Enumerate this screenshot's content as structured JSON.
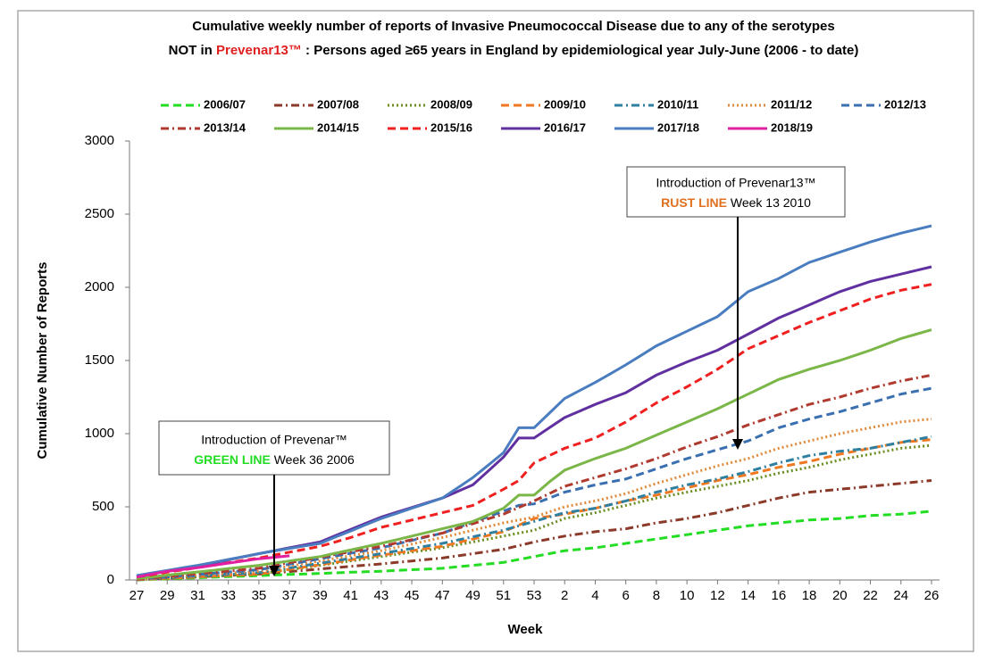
{
  "chart_data": {
    "type": "line",
    "title": {
      "line1": "Cumulative weekly number of reports of Invasive Pneumococcal Disease due to any of the serotypes",
      "line2_start": "NOT in ",
      "line2_highlight": "Prevenar13™",
      "line2_end": " : Persons aged ≥65 years in England by epidemiological year July-June (2006 - to date)",
      "highlight_color": "#e02020"
    },
    "x_label": "Week",
    "y_label": "Cumulative Number of Reports",
    "ylim": [
      0,
      3000
    ],
    "yticks": [
      0,
      500,
      1000,
      1500,
      2000,
      2500,
      3000
    ],
    "grid": false,
    "legend": "top",
    "annotations": [
      {
        "line1": "Introduction of Prevenar™",
        "highlight": "GREEN LINE",
        "rest": " Week 36 2006",
        "highlight_color": "#22dd22"
      },
      {
        "line1": "Introduction of Prevenar13™",
        "highlight": "RUST LINE",
        "rest": " Week 13 2010",
        "highlight_color": "#e07020"
      }
    ],
    "categories": [
      "27",
      null,
      "29",
      null,
      "31",
      null,
      "33",
      null,
      "35",
      null,
      "37",
      null,
      "39",
      null,
      "41",
      null,
      "43",
      null,
      "45",
      null,
      "47",
      null,
      "49",
      null,
      "51",
      null,
      "53",
      null,
      "2",
      null,
      "4",
      null,
      "6",
      null,
      "8",
      null,
      "10",
      null,
      "12",
      null,
      "14",
      null,
      "16",
      null,
      "18",
      null,
      "20",
      null,
      "22",
      null,
      "24",
      null,
      "26"
    ],
    "series": [
      {
        "name": "2006/07",
        "color": "#22dd22",
        "dash": "dashed",
        "values": [
          0,
          4,
          8,
          11,
          15,
          19,
          23,
          26,
          30,
          34,
          38,
          41,
          45,
          49,
          53,
          56,
          60,
          65,
          70,
          75,
          80,
          90,
          100,
          110,
          120,
          140,
          160,
          180,
          200,
          210,
          220,
          235,
          250,
          265,
          280,
          295,
          310,
          325,
          340,
          355,
          370,
          380,
          390,
          400,
          410,
          415,
          420,
          430,
          440,
          445,
          450,
          460,
          470
        ]
      },
      {
        "name": "2007/08",
        "color": "#8b3a2a",
        "dash": "dashdot",
        "values": [
          2,
          7,
          12,
          16,
          21,
          26,
          31,
          35,
          40,
          49,
          58,
          66,
          75,
          84,
          93,
          101,
          110,
          120,
          130,
          140,
          150,
          165,
          180,
          195,
          210,
          235,
          260,
          280,
          300,
          315,
          330,
          340,
          350,
          370,
          390,
          405,
          420,
          440,
          460,
          485,
          510,
          535,
          560,
          580,
          600,
          610,
          620,
          630,
          640,
          650,
          660,
          670,
          680
        ]
      },
      {
        "name": "2008/09",
        "color": "#6b8e23",
        "dash": "dotted",
        "values": [
          2,
          7,
          12,
          16,
          21,
          26,
          31,
          35,
          40,
          55,
          70,
          85,
          100,
          115,
          130,
          145,
          160,
          175,
          190,
          205,
          220,
          240,
          260,
          280,
          300,
          320,
          340,
          380,
          420,
          440,
          460,
          485,
          510,
          535,
          560,
          580,
          600,
          620,
          640,
          660,
          680,
          705,
          730,
          750,
          770,
          795,
          820,
          840,
          860,
          880,
          900,
          910,
          920
        ]
      },
      {
        "name": "2009/10",
        "color": "#f07820",
        "dash": "dashed",
        "values": [
          2,
          7,
          12,
          16,
          21,
          26,
          31,
          35,
          40,
          56,
          73,
          89,
          105,
          121,
          138,
          154,
          170,
          185,
          200,
          215,
          230,
          255,
          280,
          305,
          330,
          375,
          420,
          435,
          450,
          470,
          490,
          515,
          540,
          560,
          580,
          605,
          630,
          655,
          680,
          700,
          720,
          745,
          770,
          790,
          810,
          835,
          860,
          880,
          900,
          920,
          940,
          950,
          960
        ]
      },
      {
        "name": "2010/11",
        "color": "#2e7fa0",
        "dash": "dashdot",
        "values": [
          5,
          11,
          16,
          22,
          28,
          33,
          39,
          44,
          50,
          66,
          83,
          99,
          115,
          131,
          148,
          164,
          180,
          198,
          215,
          233,
          250,
          273,
          295,
          318,
          340,
          370,
          400,
          430,
          460,
          475,
          490,
          515,
          540,
          570,
          600,
          625,
          650,
          670,
          690,
          715,
          740,
          770,
          800,
          825,
          850,
          865,
          880,
          890,
          900,
          920,
          940,
          960,
          980
        ]
      },
      {
        "name": "2011/12",
        "color": "#e08a3c",
        "dash": "dotted",
        "values": [
          5,
          12,
          19,
          26,
          33,
          39,
          46,
          53,
          60,
          78,
          95,
          113,
          130,
          148,
          165,
          183,
          200,
          223,
          245,
          268,
          290,
          315,
          340,
          365,
          390,
          410,
          430,
          465,
          500,
          520,
          540,
          565,
          590,
          625,
          660,
          690,
          720,
          750,
          780,
          805,
          830,
          865,
          900,
          925,
          950,
          975,
          1000,
          1020,
          1040,
          1060,
          1080,
          1090,
          1100
        ]
      },
      {
        "name": "2012/13",
        "color": "#3a6fb0",
        "dash": "dashed",
        "values": [
          5,
          13,
          21,
          29,
          38,
          46,
          54,
          62,
          70,
          89,
          108,
          126,
          145,
          164,
          183,
          201,
          220,
          245,
          270,
          295,
          320,
          358,
          395,
          433,
          470,
          510,
          520,
          560,
          600,
          625,
          650,
          670,
          690,
          725,
          760,
          795,
          830,
          860,
          890,
          920,
          950,
          995,
          1040,
          1070,
          1100,
          1125,
          1150,
          1180,
          1210,
          1240,
          1270,
          1290,
          1310
        ]
      },
      {
        "name": "2013/14",
        "color": "#b03a30",
        "dash": "dashdot",
        "values": [
          5,
          14,
          24,
          33,
          43,
          52,
          61,
          71,
          80,
          99,
          118,
          136,
          155,
          174,
          193,
          211,
          230,
          253,
          275,
          298,
          320,
          353,
          385,
          418,
          450,
          495,
          540,
          590,
          640,
          670,
          700,
          730,
          760,
          795,
          830,
          870,
          910,
          945,
          980,
          1020,
          1060,
          1095,
          1130,
          1165,
          1200,
          1225,
          1250,
          1280,
          1310,
          1335,
          1360,
          1380,
          1400
        ]
      },
      {
        "name": "2014/15",
        "color": "#7ab648",
        "dash": "solid",
        "values": [
          10,
          21,
          33,
          44,
          55,
          66,
          78,
          89,
          100,
          115,
          130,
          145,
          160,
          183,
          205,
          228,
          250,
          275,
          300,
          325,
          350,
          375,
          400,
          445,
          490,
          580,
          580,
          670,
          750,
          790,
          830,
          865,
          900,
          945,
          990,
          1035,
          1080,
          1125,
          1170,
          1220,
          1270,
          1320,
          1370,
          1405,
          1440,
          1470,
          1500,
          1535,
          1570,
          1610,
          1650,
          1680,
          1710
        ]
      },
      {
        "name": "2015/16",
        "color": "#f02020",
        "dash": "dashed",
        "values": [
          20,
          36,
          53,
          69,
          85,
          101,
          118,
          134,
          150,
          170,
          190,
          210,
          230,
          260,
          290,
          325,
          360,
          385,
          410,
          435,
          460,
          485,
          510,
          565,
          620,
          680,
          800,
          850,
          900,
          935,
          970,
          1025,
          1080,
          1145,
          1210,
          1265,
          1320,
          1380,
          1440,
          1510,
          1580,
          1625,
          1670,
          1715,
          1760,
          1800,
          1840,
          1880,
          1920,
          1950,
          1980,
          2000,
          2020
        ]
      },
      {
        "name": "2016/17",
        "color": "#6030a0",
        "dash": "solid",
        "values": [
          30,
          46,
          63,
          79,
          95,
          116,
          138,
          159,
          180,
          200,
          220,
          240,
          260,
          303,
          345,
          388,
          430,
          463,
          495,
          528,
          560,
          605,
          650,
          745,
          840,
          970,
          970,
          1040,
          1110,
          1155,
          1200,
          1240,
          1280,
          1340,
          1400,
          1445,
          1490,
          1530,
          1570,
          1625,
          1680,
          1735,
          1790,
          1835,
          1880,
          1925,
          1970,
          2005,
          2040,
          2065,
          2090,
          2115,
          2140
        ]
      },
      {
        "name": "2017/18",
        "color": "#4a7cc0",
        "dash": "solid",
        "values": [
          30,
          48,
          65,
          83,
          100,
          120,
          140,
          160,
          180,
          198,
          215,
          233,
          250,
          293,
          335,
          378,
          420,
          455,
          490,
          525,
          560,
          630,
          700,
          785,
          870,
          1040,
          1040,
          1140,
          1240,
          1295,
          1350,
          1410,
          1470,
          1535,
          1600,
          1650,
          1700,
          1750,
          1800,
          1885,
          1970,
          2015,
          2060,
          2115,
          2170,
          2205,
          2240,
          2275,
          2310,
          2340,
          2370,
          2395,
          2420
        ]
      },
      {
        "name": "2018/19",
        "color": "#e020a0",
        "dash": "solid",
        "values": [
          20,
          40,
          60,
          72,
          85,
          100,
          115,
          130,
          145,
          155,
          165,
          null,
          null,
          null,
          null,
          null,
          null,
          null,
          null,
          null,
          null,
          null,
          null,
          null,
          null,
          null,
          null,
          null,
          null,
          null,
          null,
          null,
          null,
          null,
          null,
          null,
          null,
          null,
          null,
          null,
          null,
          null,
          null,
          null,
          null,
          null,
          null,
          null,
          null,
          null,
          null,
          null,
          null
        ]
      }
    ]
  }
}
